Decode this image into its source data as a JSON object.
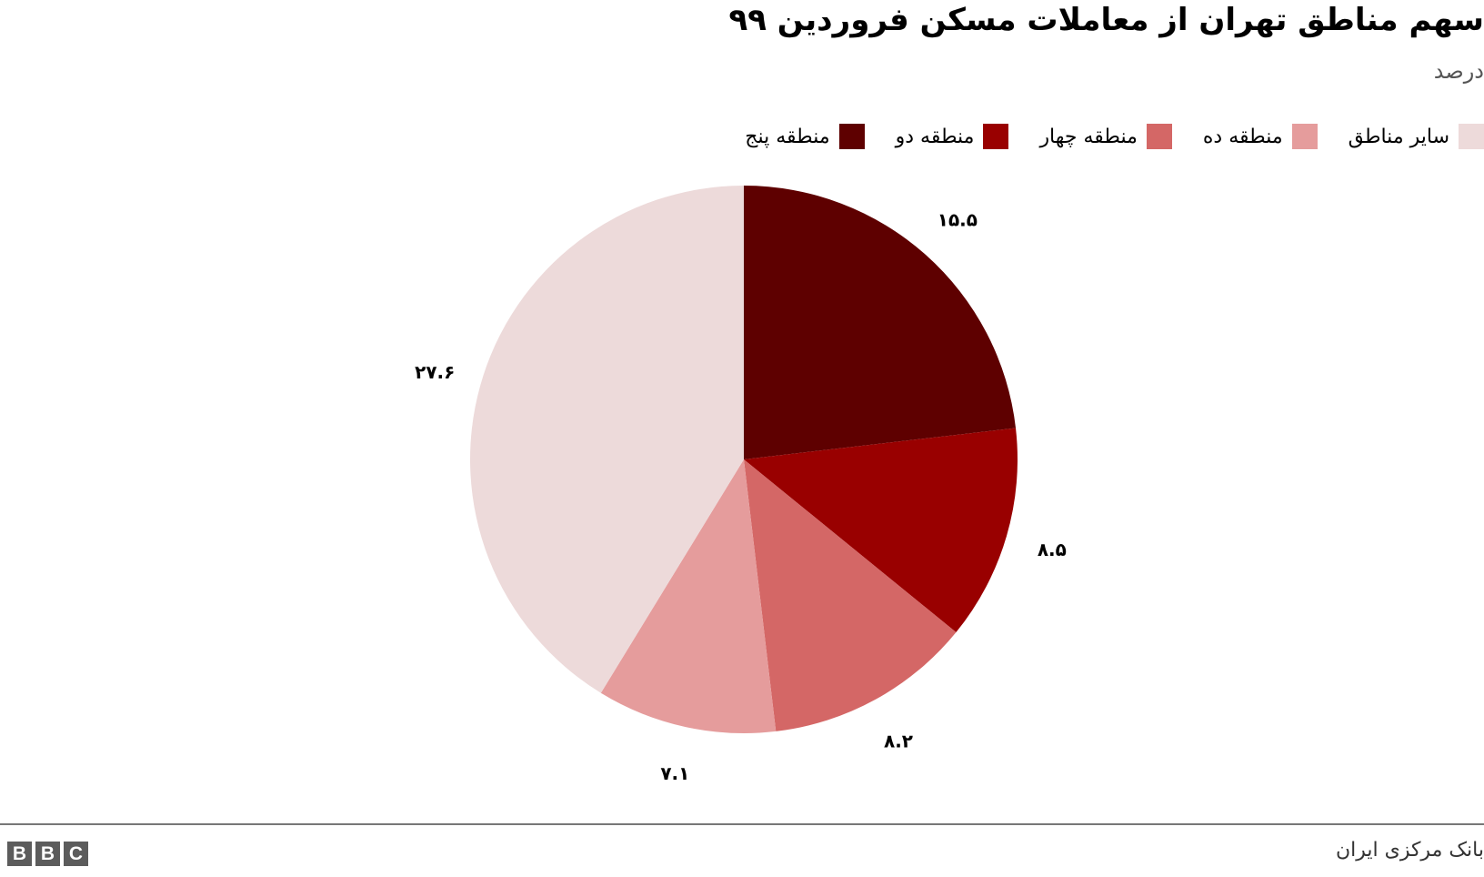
{
  "chart_data": {
    "type": "pie",
    "title": "سهم مناطق تهران از معاملات مسکن فروردین ۹۹",
    "subtitle": "درصد",
    "categories": [
      "منطقه پنج",
      "منطقه دو",
      "منطقه چهار",
      "منطقه ده",
      "سایر مناطق"
    ],
    "values": [
      15.5,
      8.5,
      8.2,
      7.1,
      27.6
    ],
    "data_labels": [
      "۱۵.۵",
      "۸.۵",
      "۸.۲",
      "۷.۱",
      "۲۷.۶"
    ],
    "colors": [
      "#5e0000",
      "#990000",
      "#d46766",
      "#e59c9c",
      "#eddada"
    ],
    "legend_position": "top-right",
    "start_angle": "top, clockwise"
  },
  "footer": {
    "source": "بانک مرکزی ایران",
    "logo": "BBC"
  }
}
